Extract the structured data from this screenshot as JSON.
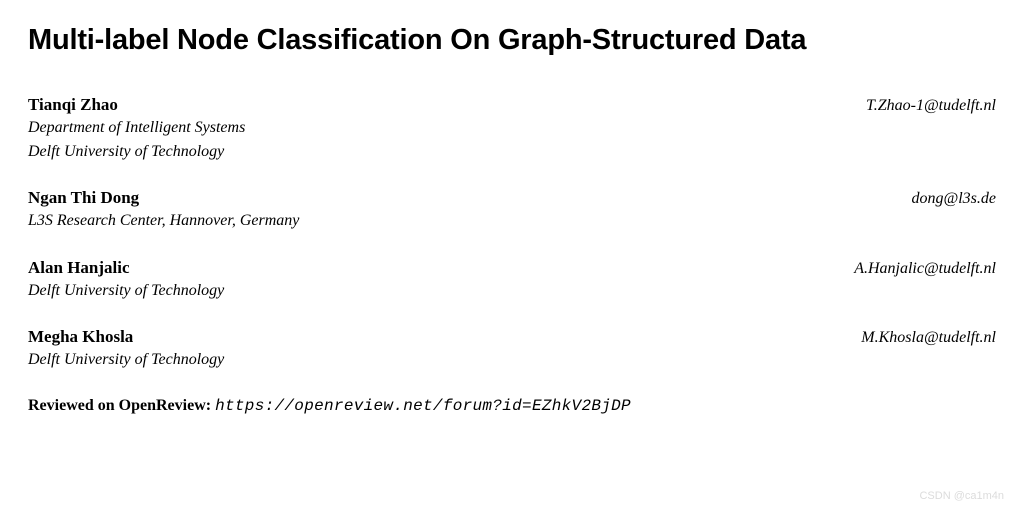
{
  "title": "Multi-label Node Classification On Graph-Structured Data",
  "authors": [
    {
      "name": "Tianqi Zhao",
      "email": "T.Zhao-1@tudelft.nl",
      "affiliation": [
        "Department of Intelligent Systems",
        "Delft University of Technology"
      ]
    },
    {
      "name": "Ngan Thi Dong",
      "email": "dong@l3s.de",
      "affiliation": [
        "L3S Research Center, Hannover, Germany"
      ]
    },
    {
      "name": "Alan Hanjalic",
      "email": "A.Hanjalic@tudelft.nl",
      "affiliation": [
        "Delft University of Technology"
      ]
    },
    {
      "name": "Megha Khosla",
      "email": "M.Khosla@tudelft.nl",
      "affiliation": [
        "Delft University of Technology"
      ]
    }
  ],
  "reviewed": {
    "label": "Reviewed on OpenReview: ",
    "url": "https://openreview.net/forum?id=EZhkV2BjDP"
  },
  "watermark": "CSDN @ca1m4n",
  "colors": {
    "text": "#000000",
    "background": "#ffffff",
    "watermark": "#dcdcdc"
  },
  "typography": {
    "title_fontsize": 29,
    "author_name_fontsize": 17,
    "body_fontsize": 16,
    "title_font": "sans-serif",
    "body_font": "serif"
  }
}
